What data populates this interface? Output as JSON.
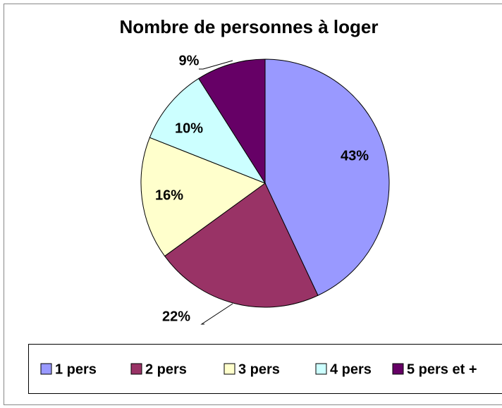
{
  "chart_data": {
    "type": "pie",
    "title": "Nombre de personnes à loger",
    "categories": [
      "1 pers",
      "2 pers",
      "3 pers",
      "4 pers",
      "5 pers et +"
    ],
    "values": [
      43,
      22,
      16,
      10,
      9
    ],
    "value_labels": [
      "43%",
      "22%",
      "16%",
      "10%",
      "9%"
    ],
    "colors": [
      "#9999ff",
      "#993366",
      "#ffffcc",
      "#ccffff",
      "#660066"
    ],
    "legend": "bottom"
  }
}
